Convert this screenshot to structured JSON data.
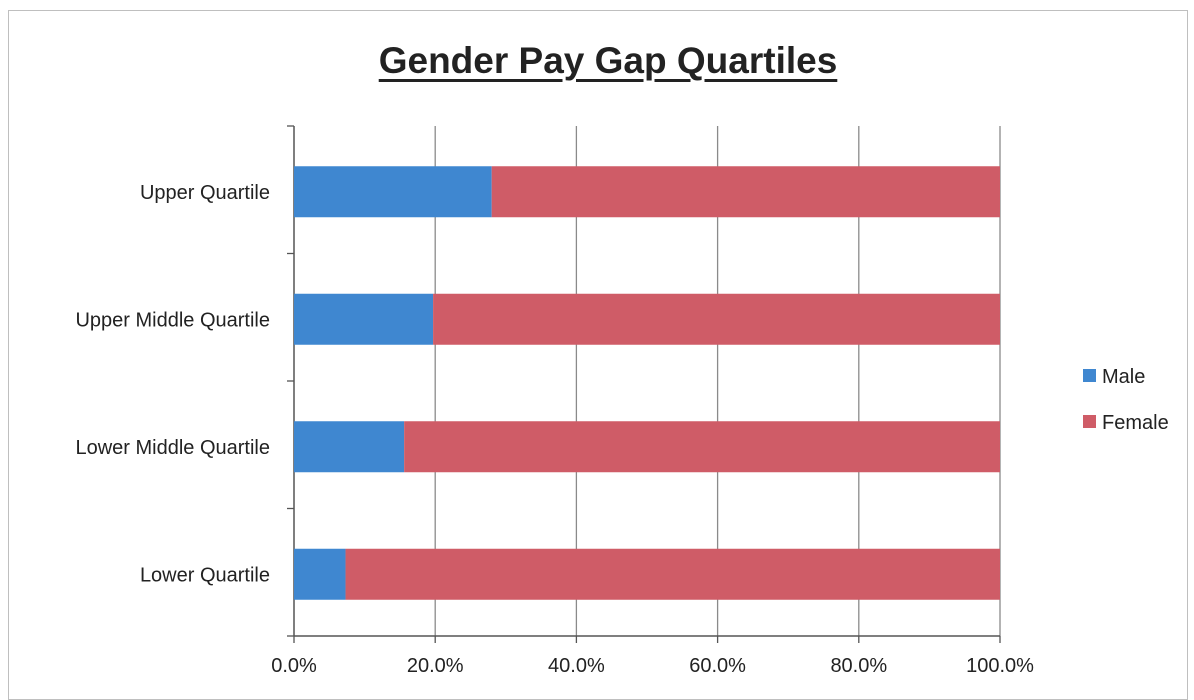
{
  "chart_data": {
    "type": "bar",
    "orientation": "horizontal",
    "stacked": true,
    "title": "Gender Pay Gap Quartiles",
    "categories": [
      "Upper Quartile",
      "Upper Middle Quartile",
      "Lower Middle Quartile",
      "Lower Quartile"
    ],
    "series": [
      {
        "name": "Male",
        "color": "#3f87d0",
        "values": [
          28.0,
          19.7,
          15.6,
          7.3
        ]
      },
      {
        "name": "Female",
        "color": "#cf5c67",
        "values": [
          72.0,
          80.3,
          84.4,
          92.7
        ]
      }
    ],
    "xlim": [
      0,
      100
    ],
    "x_ticks": [
      "0.0%",
      "20.0%",
      "40.0%",
      "60.0%",
      "80.0%",
      "100.0%"
    ],
    "grid": "vertical",
    "legend": "right"
  }
}
